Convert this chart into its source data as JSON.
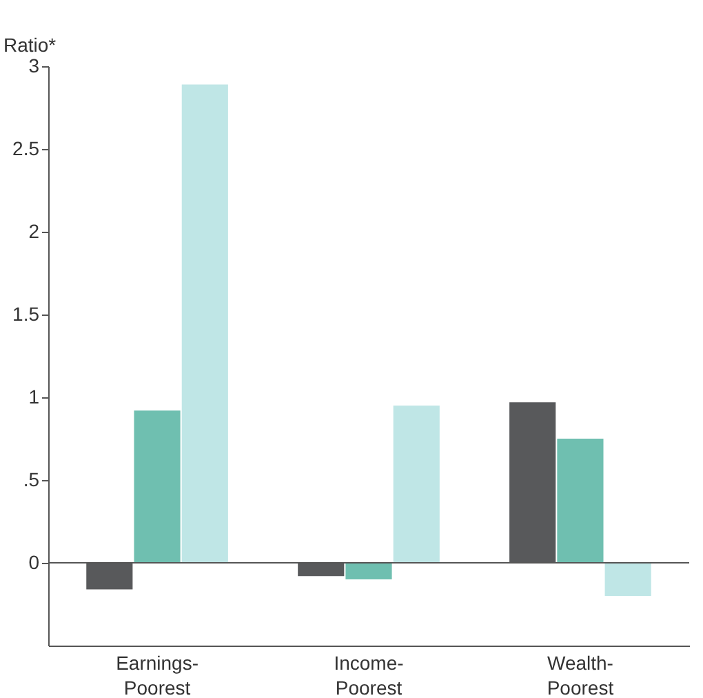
{
  "chart_data": {
    "type": "bar",
    "ylabel": "Ratio*",
    "categories": [
      "Earnings-Poorest",
      "Income-Poorest",
      "Wealth-Poorest"
    ],
    "series": [
      {
        "color": "#58595b",
        "values": [
          -0.16,
          -0.08,
          0.97
        ]
      },
      {
        "color": "#6fbfb0",
        "values": [
          0.92,
          -0.1,
          0.75
        ]
      },
      {
        "color": "#bfe6e6",
        "values": [
          2.89,
          0.95,
          -0.2
        ]
      }
    ],
    "ylim": [
      -0.5,
      3
    ],
    "yticks": [
      0,
      {
        "value": 0.5,
        "label": ".5"
      },
      1,
      1.5,
      2,
      2.5,
      3
    ],
    "grid": false,
    "legend": false,
    "ref_lines": [
      {
        "axis": "y",
        "value": 0
      }
    ]
  }
}
